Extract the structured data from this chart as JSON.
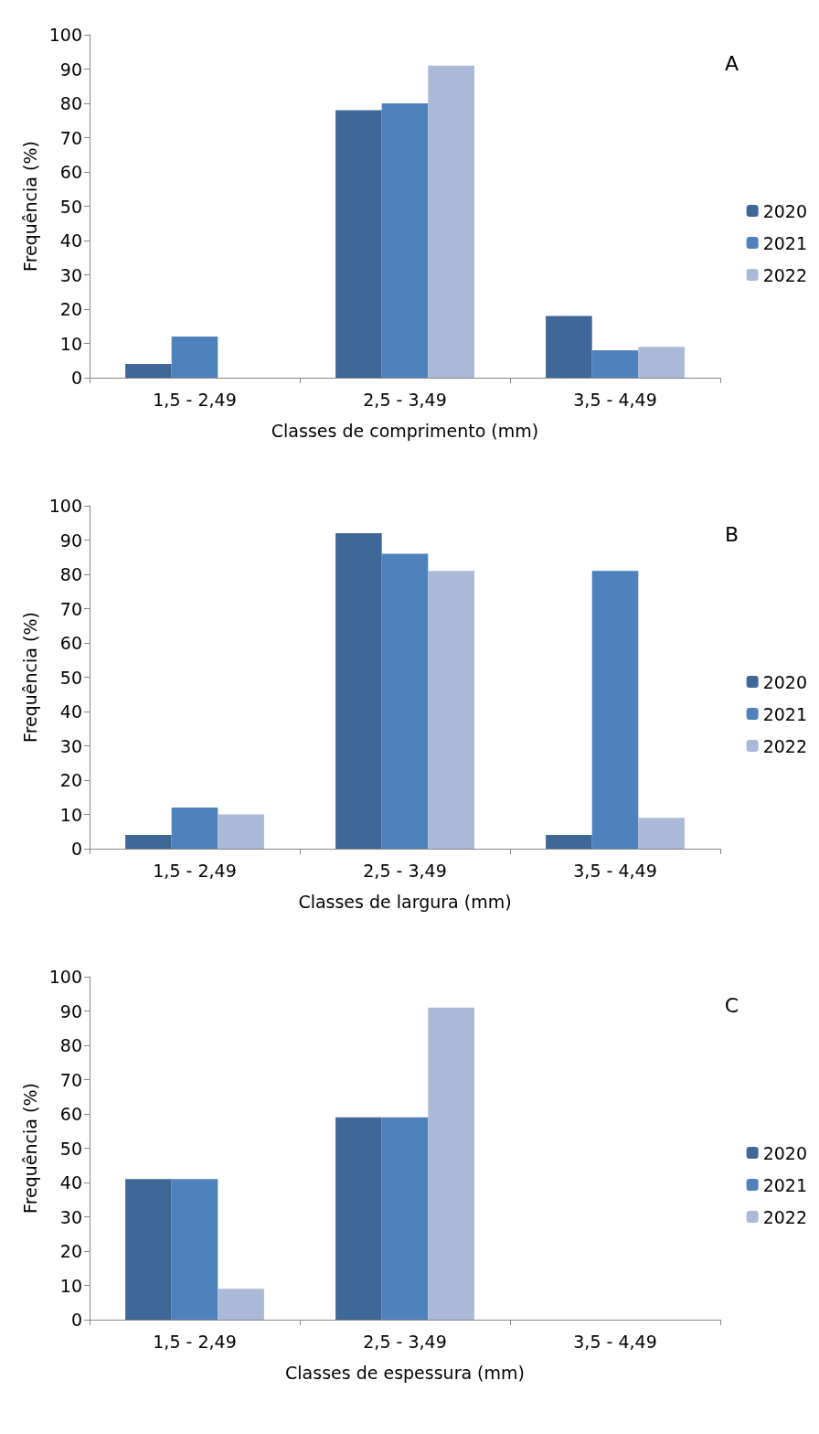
{
  "chart_data": [
    {
      "type": "bar",
      "title": "A",
      "xlabel": "Classes de comprimento (mm)",
      "ylabel": "Frequência (%)",
      "categories": [
        "1,5 - 2,49",
        "2,5 - 3,49",
        "3,5 - 4,49"
      ],
      "series": [
        {
          "name": "2020",
          "color": "#3f6797",
          "values": [
            4,
            78,
            18
          ]
        },
        {
          "name": "2021",
          "color": "#4f81bd",
          "values": [
            12,
            80,
            8
          ]
        },
        {
          "name": "2022",
          "color": "#aab9d7",
          "values": [
            0,
            91,
            9
          ]
        }
      ],
      "ylim": [
        0,
        100
      ],
      "yticks": [
        0,
        10,
        20,
        30,
        40,
        50,
        60,
        70,
        80,
        90,
        100
      ],
      "grid": false,
      "legend": "right"
    },
    {
      "type": "bar",
      "title": "B",
      "xlabel": "Classes de largura (mm)",
      "ylabel": "Frequência (%)",
      "categories": [
        "1,5 - 2,49",
        "2,5 - 3,49",
        "3,5 - 4,49"
      ],
      "series": [
        {
          "name": "2020",
          "color": "#3f6797",
          "values": [
            4,
            92,
            4
          ]
        },
        {
          "name": "2021",
          "color": "#4f81bd",
          "values": [
            12,
            86,
            81
          ]
        },
        {
          "name": "2022",
          "color": "#aab9d7",
          "values": [
            10,
            81,
            9
          ]
        }
      ],
      "ylim": [
        0,
        100
      ],
      "yticks": [
        0,
        10,
        20,
        30,
        40,
        50,
        60,
        70,
        80,
        90,
        100
      ],
      "grid": false,
      "legend": "right"
    },
    {
      "type": "bar",
      "title": "C",
      "xlabel": "Classes de espessura (mm)",
      "ylabel": "Frequência (%)",
      "categories": [
        "1,5 - 2,49",
        "2,5 - 3,49",
        "3,5 - 4,49"
      ],
      "series": [
        {
          "name": "2020",
          "color": "#3f6797",
          "values": [
            41,
            59,
            0
          ]
        },
        {
          "name": "2021",
          "color": "#4f81bd",
          "values": [
            41,
            59,
            0
          ]
        },
        {
          "name": "2022",
          "color": "#aab9d7",
          "values": [
            9,
            91,
            0
          ]
        }
      ],
      "ylim": [
        0,
        100
      ],
      "yticks": [
        0,
        10,
        20,
        30,
        40,
        50,
        60,
        70,
        80,
        90,
        100
      ],
      "grid": false,
      "legend": "right"
    }
  ]
}
